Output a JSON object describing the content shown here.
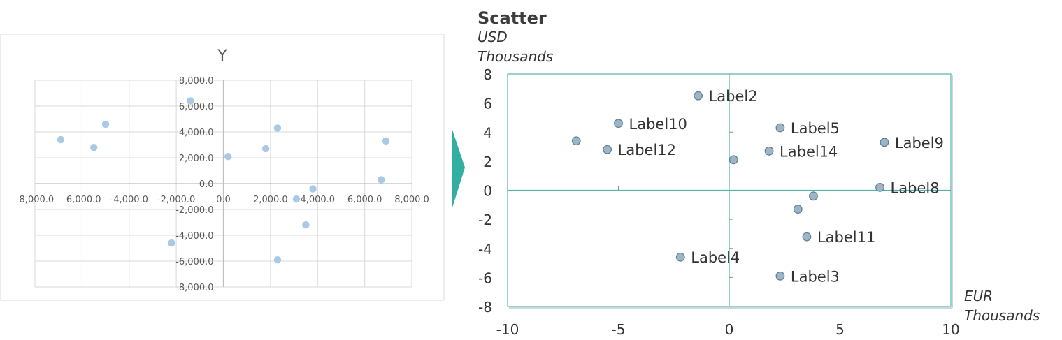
{
  "colors": {
    "left_point": "#a9c9e4",
    "left_border": "#d9d9d9",
    "left_grid": "#d9d9d9",
    "left_axis": "#bfbfbf",
    "left_text": "#595959",
    "left_title": "#595959",
    "arrow": "#31b0a1",
    "right_frame": "#4fb3b0",
    "right_axis": "#4fb3b0",
    "right_point_fill": "#9cb6c6",
    "right_point_stroke": "#5f7f93",
    "right_text": "#333333",
    "right_title": "#3c3c3c"
  },
  "chart_data": [
    {
      "type": "scatter",
      "title": "Y",
      "xlim": [
        -8000,
        8000
      ],
      "ylim": [
        -8000,
        8000
      ],
      "xticks": [
        -8000,
        -6000,
        -4000,
        -2000,
        0,
        2000,
        4000,
        6000,
        8000
      ],
      "xtick_labels": [
        "-8,000.0",
        "-6,000.0",
        "-4,000.0",
        "-2,000.0",
        "0.0",
        "2,000.0",
        "4,000.0",
        "6,000.0",
        "8,000.0"
      ],
      "yticks": [
        -8000,
        -6000,
        -4000,
        -2000,
        0,
        2000,
        4000,
        6000,
        8000
      ],
      "ytick_labels": [
        "-8,000.0",
        "-6,000.0",
        "-4,000.0",
        "-2,000.0",
        "0.0",
        "2,000.0",
        "4,000.0",
        "6,000.0",
        "8,000.0"
      ],
      "grid": true,
      "points": [
        {
          "x": -6900,
          "y": 3400
        },
        {
          "x": -5500,
          "y": 2800
        },
        {
          "x": -5000,
          "y": 4600
        },
        {
          "x": -2200,
          "y": -4600
        },
        {
          "x": -1400,
          "y": 6400
        },
        {
          "x": 200,
          "y": 2100
        },
        {
          "x": 1800,
          "y": 2700
        },
        {
          "x": 2300,
          "y": 4300
        },
        {
          "x": 2300,
          "y": -5900
        },
        {
          "x": 3100,
          "y": -1200
        },
        {
          "x": 3500,
          "y": -3200
        },
        {
          "x": 3800,
          "y": -400
        },
        {
          "x": 6700,
          "y": 300
        },
        {
          "x": 6900,
          "y": 3300
        }
      ]
    },
    {
      "type": "scatter",
      "title": "Scatter",
      "ylabel": "USD",
      "ylabel_units": "Thousands",
      "xlabel": "EUR",
      "xlabel_units": "Thousands",
      "xlim": [
        -10,
        10
      ],
      "ylim": [
        -8,
        8
      ],
      "xticks": [
        -10,
        -5,
        0,
        5,
        10
      ],
      "xtick_labels": [
        "-10",
        "-5",
        "0",
        "5",
        "10"
      ],
      "yticks": [
        -8,
        -6,
        -4,
        -2,
        0,
        2,
        4,
        6,
        8
      ],
      "ytick_labels": [
        "-8",
        "-6",
        "-4",
        "-2",
        "0",
        "2",
        "4",
        "6",
        "8"
      ],
      "grid": false,
      "points": [
        {
          "x": -6.9,
          "y": 3.4,
          "label": ""
        },
        {
          "x": -1.4,
          "y": 6.5,
          "label": "Label2"
        },
        {
          "x": 2.3,
          "y": -5.9,
          "label": "Label3"
        },
        {
          "x": -2.2,
          "y": -4.6,
          "label": "Label4"
        },
        {
          "x": 2.3,
          "y": 4.3,
          "label": "Label5"
        },
        {
          "x": 0.2,
          "y": 2.1,
          "label": ""
        },
        {
          "x": 3.8,
          "y": -0.4,
          "label": ""
        },
        {
          "x": 6.8,
          "y": 0.2,
          "label": "Label8"
        },
        {
          "x": 7.0,
          "y": 3.3,
          "label": "Label9"
        },
        {
          "x": -5.0,
          "y": 4.6,
          "label": "Label10"
        },
        {
          "x": 3.5,
          "y": -3.2,
          "label": "Label11"
        },
        {
          "x": -5.5,
          "y": 2.8,
          "label": "Label12"
        },
        {
          "x": 3.1,
          "y": -1.3,
          "label": ""
        },
        {
          "x": 1.8,
          "y": 2.7,
          "label": "Label14"
        }
      ]
    }
  ]
}
